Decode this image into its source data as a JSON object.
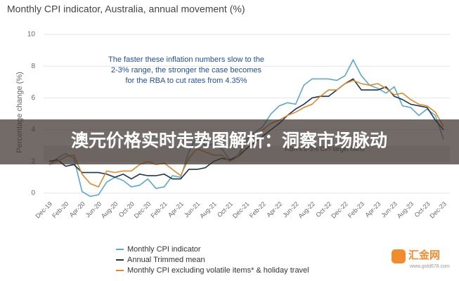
{
  "chart_data": {
    "type": "line",
    "title": "Monthly CPI indicator, Australia, annual movement (%)",
    "y_label": "Percentage change (%)",
    "annotation": [
      "The faster these inflation numbers slow to the",
      "2-3% range, the stronger the case becomes",
      "for the RBA to cut rates from 4.35%"
    ],
    "target_band": {
      "range": [
        2,
        3
      ],
      "label": "RBA's 2-3% CPI target band",
      "color": "#d9d9d9"
    },
    "categories": [
      "Dec-19",
      null,
      "Feb-20",
      null,
      "Apr-20",
      null,
      "Jun-20",
      null,
      "Aug-20",
      null,
      "Oct-20",
      null,
      "Dec-20",
      null,
      "Feb-21",
      null,
      "Apr-21",
      null,
      "Jun-21",
      null,
      "Aug-21",
      null,
      "Oct-21",
      null,
      "Dec-21",
      null,
      "Feb-22",
      null,
      "Apr-22",
      null,
      "Jun-22",
      null,
      "Aug-22",
      null,
      "Oct-22",
      null,
      "Dec-22",
      null,
      "Feb-23",
      null,
      "Apr-23",
      null,
      "Jun-23",
      null,
      "Aug-23",
      null,
      "Oct-23",
      null,
      "Dec-23"
    ],
    "series": [
      {
        "name": "Monthly CPI indicator",
        "color": "#5ba8cf",
        "values": [
          1.8,
          2.2,
          2.5,
          2.2,
          0.1,
          -0.2,
          -0.1,
          0.7,
          1.0,
          0.8,
          0.4,
          0.5,
          0.9,
          0.3,
          0.4,
          1.1,
          1.0,
          2.6,
          3.6,
          3.0,
          3.1,
          2.8,
          2.1,
          2.4,
          3.4,
          3.8,
          4.2,
          5.0,
          5.5,
          5.7,
          5.6,
          6.8,
          7.2,
          7.2,
          7.2,
          7.1,
          7.4,
          8.4,
          7.4,
          6.8,
          6.6,
          6.3,
          6.7,
          5.5,
          5.4,
          4.9,
          5.3,
          4.9,
          3.4
        ]
      },
      {
        "name": "Annual Trimmed mean",
        "color": "#1c3550",
        "values": [
          2.0,
          2.1,
          1.7,
          1.8,
          1.3,
          1.3,
          1.3,
          1.2,
          1.0,
          1.2,
          0.9,
          1.2,
          1.1,
          1.1,
          1.2,
          0.9,
          0.9,
          1.5,
          1.5,
          1.6,
          2.0,
          2.2,
          2.1,
          2.3,
          2.8,
          3.2,
          3.6,
          4.0,
          4.4,
          4.9,
          5.3,
          5.6,
          6.0,
          6.1,
          6.1,
          6.5,
          6.9,
          7.2,
          6.5,
          6.5,
          6.5,
          6.7,
          6.1,
          5.9,
          5.6,
          5.5,
          5.4,
          4.6,
          4.0
        ]
      },
      {
        "name": "Monthly CPI excluding volatile items* & holiday travel",
        "color": "#e0892b",
        "values": [
          1.8,
          2.0,
          2.3,
          2.4,
          1.2,
          0.6,
          0.4,
          1.4,
          1.3,
          1.4,
          1.4,
          1.8,
          2.0,
          1.8,
          1.9,
          1.5,
          1.1,
          2.2,
          2.8,
          2.6,
          2.4,
          2.4,
          2.0,
          2.3,
          3.2,
          3.6,
          4.0,
          4.4,
          4.6,
          4.9,
          5.1,
          5.4,
          5.6,
          6.1,
          6.5,
          6.5,
          6.9,
          7.1,
          6.9,
          6.8,
          6.9,
          6.6,
          6.2,
          6.3,
          5.9,
          5.6,
          5.5,
          5.1,
          4.2
        ]
      }
    ],
    "ylim": [
      -1,
      10
    ],
    "yticks": [
      0,
      2,
      4,
      6,
      8,
      10
    ],
    "grid": true
  },
  "overlay_banner": {
    "text": "澳元价格实时走势图解析：洞察市场脉动"
  },
  "watermark": {
    "name": "汇金网",
    "url": "www.gold678.com"
  }
}
